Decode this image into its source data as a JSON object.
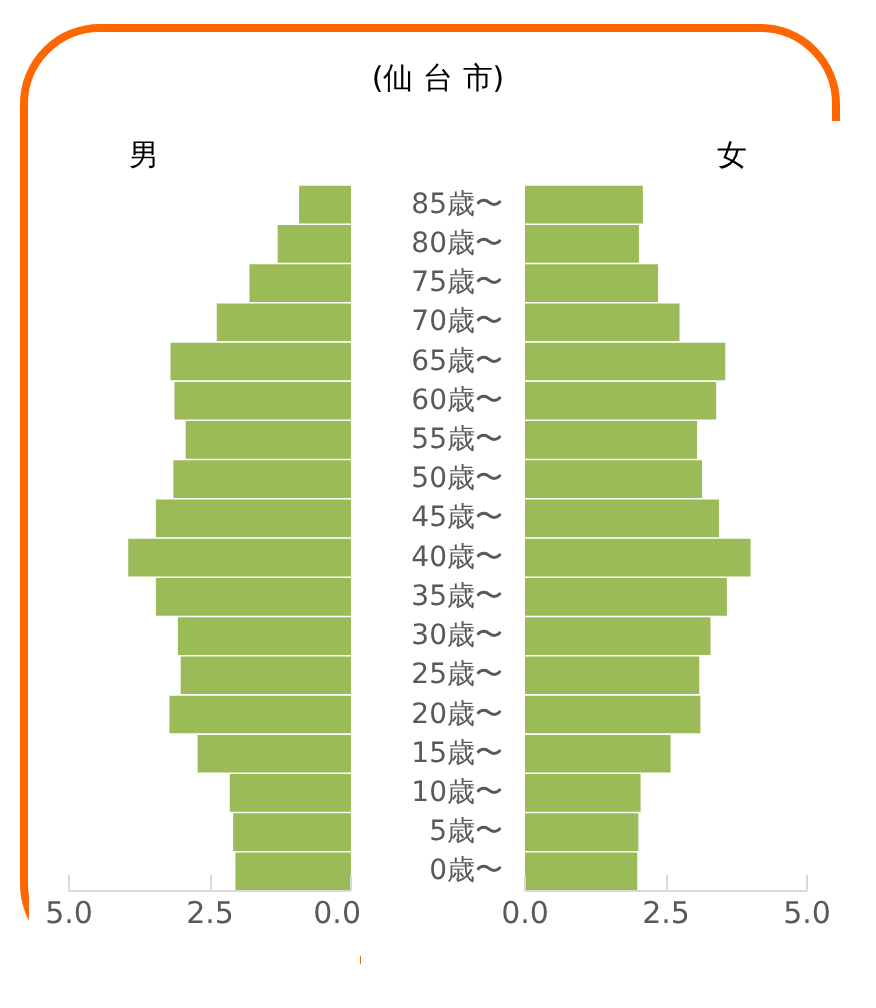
{
  "chart_data": [
    {
      "type": "bar",
      "orientation": "horizontal",
      "title": "男",
      "annotations": [
        "(仙 台 市)"
      ],
      "tick_labels": "x",
      "categories": [
        null,
        null,
        null,
        null,
        null,
        null,
        null,
        null,
        null,
        null,
        null,
        null,
        null,
        null,
        null,
        null,
        null,
        null
      ],
      "values": [
        0.92,
        1.3,
        1.8,
        2.38,
        3.2,
        3.13,
        2.93,
        3.15,
        3.46,
        3.95,
        3.46,
        3.07,
        3.02,
        3.22,
        2.72,
        2.15,
        2.09,
        2.05
      ],
      "color": "#9bbb59",
      "xlim": [
        5,
        0
      ],
      "xticks": [
        {
          "value": 5,
          "label": "5.0"
        },
        {
          "value": 2.5,
          "label": "2.5"
        },
        {
          "value": 0,
          "label": "0.0"
        }
      ]
    },
    {
      "type": "bar",
      "orientation": "horizontal",
      "title": "女",
      "categories": [
        "85歳〜",
        "80歳〜",
        "75歳〜",
        "70歳〜",
        "65歳〜",
        "60歳〜",
        "55歳〜",
        "50歳〜",
        "45歳〜",
        "40歳〜",
        "35歳〜",
        "30歳〜",
        "25歳〜",
        "20歳〜",
        "15歳〜",
        "10歳〜",
        "5歳〜",
        "0歳〜"
      ],
      "values": [
        2.09,
        2.02,
        2.36,
        2.74,
        3.55,
        3.39,
        3.05,
        3.14,
        3.44,
        4.0,
        3.58,
        3.29,
        3.09,
        3.11,
        2.58,
        2.05,
        2.01,
        1.99
      ],
      "color": "#9bbb59",
      "xlim": [
        0,
        5
      ],
      "xticks": [
        {
          "value": 0,
          "label": "0.0"
        },
        {
          "value": 2.5,
          "label": "2.5"
        },
        {
          "value": 5,
          "label": "5.0"
        }
      ]
    }
  ]
}
